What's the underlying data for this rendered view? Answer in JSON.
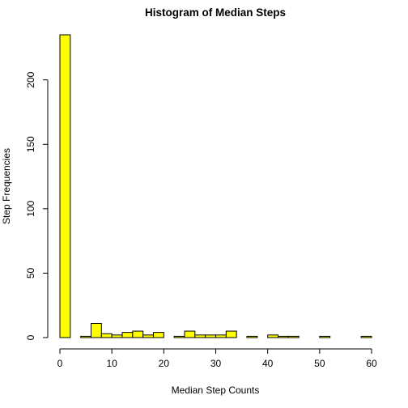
{
  "chart_data": {
    "type": "bar",
    "title": "Histogram of Median Steps",
    "xlabel": "Median Step Counts",
    "ylabel": "Step Frequencies",
    "bar_color": "#ffff00",
    "bar_border_color": "#000000",
    "bin_edges": [
      0,
      2,
      4,
      6,
      8,
      10,
      12,
      14,
      16,
      18,
      20,
      22,
      24,
      26,
      28,
      30,
      32,
      34,
      36,
      38,
      40,
      42,
      44,
      46,
      48,
      50,
      52,
      54,
      56,
      58,
      60
    ],
    "values": [
      235,
      0,
      1,
      11,
      3,
      2,
      4,
      5,
      2,
      4,
      0,
      1,
      5,
      2,
      2,
      2,
      5,
      0,
      1,
      0,
      2,
      1,
      1,
      0,
      0,
      1,
      0,
      0,
      0,
      1
    ],
    "xlim": [
      0,
      60
    ],
    "ylim": [
      0,
      235
    ],
    "x_ticks": [
      0,
      10,
      20,
      30,
      40,
      50,
      60
    ],
    "y_ticks": [
      0,
      50,
      100,
      150,
      200
    ],
    "grid": false,
    "legend": "none"
  }
}
